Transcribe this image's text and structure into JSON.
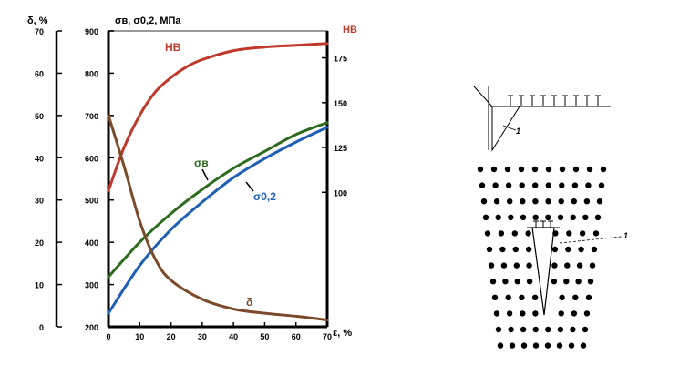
{
  "colors": {
    "hb": "#c0392b",
    "sigma_b": "#2e6b1f",
    "sigma_02": "#1f5fb5",
    "delta": "#7a4a2a",
    "axis": "#000000",
    "frame": "#9a9a9a"
  },
  "chart_data": {
    "type": "line",
    "xlabel": "ε, %",
    "x_ticks": [
      0,
      10,
      20,
      30,
      40,
      50,
      60,
      70
    ],
    "xlim": [
      0,
      70
    ],
    "left_axis": {
      "label": "δ, %",
      "ticks": [
        0,
        10,
        20,
        30,
        40,
        50,
        60,
        70
      ],
      "ylim": [
        0,
        70
      ]
    },
    "middle_axis": {
      "label": "σв, σ0,2, МПа",
      "ticks": [
        200,
        300,
        400,
        500,
        600,
        700,
        800,
        900
      ],
      "ylim": [
        200,
        900
      ]
    },
    "right_axis": {
      "label": "HB",
      "ticks": [
        100,
        125,
        150,
        175
      ],
      "ylim": [
        25,
        190
      ]
    },
    "series": [
      {
        "name": "HB",
        "axis": "right",
        "x": [
          0,
          5,
          10,
          15,
          20,
          25,
          30,
          40,
          50,
          60,
          70
        ],
        "y": [
          101,
          125,
          143,
          156,
          164,
          170,
          174,
          179,
          181,
          182,
          183
        ]
      },
      {
        "name": "σв",
        "axis": "middle",
        "x": [
          0,
          10,
          20,
          30,
          40,
          50,
          60,
          70
        ],
        "y": [
          318,
          400,
          468,
          525,
          575,
          615,
          655,
          683
        ]
      },
      {
        "name": "σ0,2",
        "axis": "middle",
        "x": [
          0,
          10,
          20,
          30,
          40,
          50,
          60,
          70
        ],
        "y": [
          232,
          345,
          430,
          495,
          553,
          598,
          637,
          672
        ]
      },
      {
        "name": "δ",
        "axis": "left",
        "x": [
          0,
          5,
          10,
          15,
          20,
          30,
          40,
          50,
          60,
          70
        ],
        "y": [
          50,
          38,
          25,
          16,
          11,
          6.5,
          4.2,
          3.2,
          2.5,
          1.6
        ]
      }
    ]
  },
  "diagram": {
    "label_1": "1",
    "label_2": "1"
  }
}
